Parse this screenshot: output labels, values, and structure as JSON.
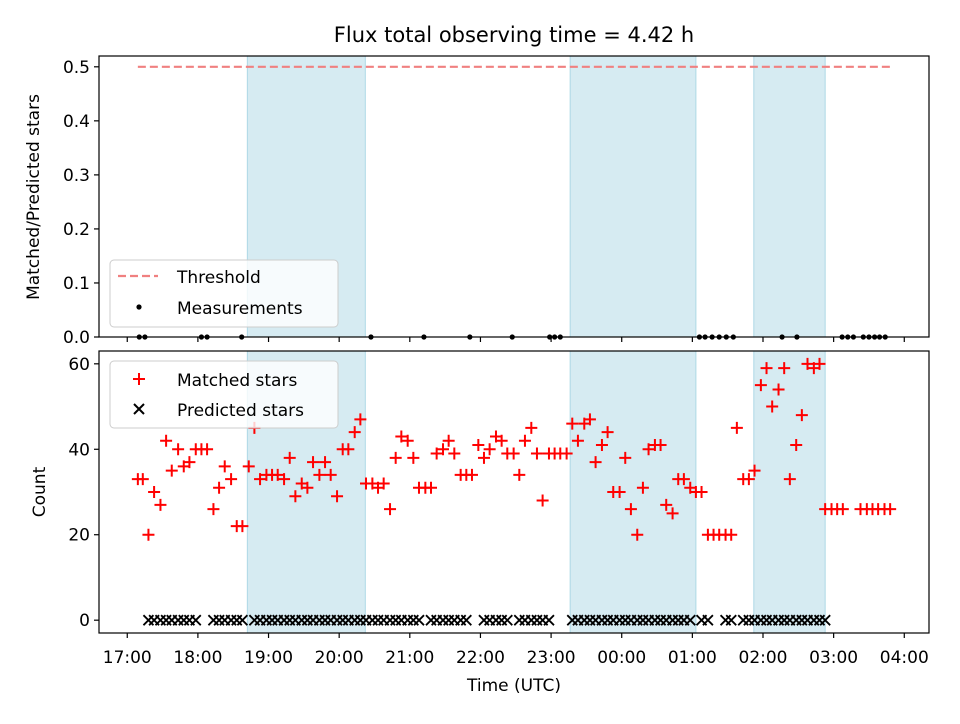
{
  "colors": {
    "threshold": "#f08080",
    "shade": "#add8e6",
    "matched": "#ff0000",
    "predicted": "#000000",
    "measurement": "#000000"
  },
  "chart_data": [
    {
      "type": "scatter",
      "title": "Flux total observing time = 4.42 h",
      "xlabel": "",
      "ylabel": "Matched/Predicted stars",
      "xlim": [
        16.6,
        28.35
      ],
      "ylim": [
        0,
        0.52
      ],
      "yticks": [
        0.0,
        0.1,
        0.2,
        0.3,
        0.4,
        0.5
      ],
      "ytick_labels": [
        "0.0",
        "0.1",
        "0.2",
        "0.3",
        "0.4",
        "0.5"
      ],
      "xticks": [
        17,
        18,
        19,
        20,
        21,
        22,
        23,
        24,
        25,
        26,
        27,
        28
      ],
      "shaded_intervals": [
        [
          18.7,
          20.37
        ],
        [
          23.27,
          25.05
        ],
        [
          25.87,
          26.88
        ]
      ],
      "threshold": {
        "name": "Threshold",
        "value": 0.5,
        "x_range": [
          17.15,
          27.82
        ]
      },
      "measurements": {
        "name": "Measurements",
        "x": [
          17.17,
          17.25,
          18.05,
          18.13,
          18.62,
          20.45,
          21.2,
          21.85,
          22.45,
          22.98,
          23.05,
          23.13,
          25.1,
          25.18,
          25.28,
          25.38,
          25.48,
          25.58,
          26.27,
          26.48,
          27.12,
          27.2,
          27.28,
          27.42,
          27.5,
          27.58,
          27.65,
          27.73
        ],
        "y": [
          0,
          0,
          0,
          0,
          0,
          0,
          0,
          0,
          0,
          0,
          0,
          0,
          0,
          0,
          0,
          0,
          0,
          0,
          0,
          0,
          0,
          0,
          0,
          0,
          0,
          0,
          0,
          0
        ]
      },
      "legend": {
        "location": "lower-left",
        "entries": [
          "Threshold",
          "Measurements"
        ]
      }
    },
    {
      "type": "scatter",
      "title": "",
      "xlabel": "Time (UTC)",
      "ylabel": "Count",
      "xlim": [
        16.6,
        28.35
      ],
      "ylim": [
        -3,
        63
      ],
      "yticks": [
        0,
        20,
        40,
        60
      ],
      "ytick_labels": [
        "0",
        "20",
        "40",
        "60"
      ],
      "xticks": [
        17,
        18,
        19,
        20,
        21,
        22,
        23,
        24,
        25,
        26,
        27,
        28
      ],
      "xtick_labels": [
        "17:00",
        "18:00",
        "19:00",
        "20:00",
        "21:00",
        "22:00",
        "23:00",
        "00:00",
        "01:00",
        "02:00",
        "03:00",
        "04:00"
      ],
      "shaded_intervals": [
        [
          18.7,
          20.37
        ],
        [
          23.27,
          25.05
        ],
        [
          25.87,
          26.88
        ]
      ],
      "series": [
        {
          "name": "Matched stars",
          "marker": "+",
          "x": [
            17.15,
            17.22,
            17.3,
            17.38,
            17.47,
            17.55,
            17.63,
            17.72,
            17.8,
            17.88,
            17.97,
            18.05,
            18.13,
            18.22,
            18.3,
            18.38,
            18.47,
            18.55,
            18.63,
            18.72,
            18.8,
            18.88,
            18.97,
            19.05,
            19.13,
            19.22,
            19.3,
            19.38,
            19.47,
            19.55,
            19.63,
            19.72,
            19.8,
            19.88,
            19.97,
            20.05,
            20.13,
            20.22,
            20.3,
            20.38,
            20.47,
            20.55,
            20.63,
            20.72,
            20.8,
            20.88,
            20.97,
            21.05,
            21.13,
            21.22,
            21.3,
            21.38,
            21.47,
            21.55,
            21.63,
            21.72,
            21.8,
            21.88,
            21.97,
            22.05,
            22.13,
            22.22,
            22.3,
            22.38,
            22.47,
            22.55,
            22.63,
            22.72,
            22.8,
            22.88,
            22.97,
            23.05,
            23.13,
            23.22,
            23.3,
            23.38,
            23.47,
            23.55,
            23.63,
            23.72,
            23.8,
            23.88,
            23.97,
            24.05,
            24.13,
            24.22,
            24.3,
            24.38,
            24.47,
            24.55,
            24.63,
            24.72,
            24.8,
            24.88,
            24.97,
            25.05,
            25.13,
            25.22,
            25.3,
            25.38,
            25.47,
            25.55,
            25.63,
            25.72,
            25.8,
            25.88,
            25.97,
            26.05,
            26.13,
            26.22,
            26.3,
            26.38,
            26.47,
            26.55,
            26.63,
            26.72,
            26.8,
            26.88,
            26.97,
            27.05,
            27.13,
            27.38,
            27.47,
            27.55,
            27.63,
            27.72,
            27.8
          ],
          "y": [
            33,
            33,
            20,
            30,
            27,
            42,
            35,
            40,
            36,
            37,
            40,
            40,
            40,
            26,
            31,
            36,
            33,
            22,
            22,
            36,
            45,
            33,
            34,
            34,
            34,
            33,
            38,
            29,
            32,
            31,
            37,
            34,
            37,
            34,
            29,
            40,
            40,
            44,
            47,
            32,
            32,
            31,
            32,
            26,
            38,
            43,
            42,
            38,
            31,
            31,
            31,
            39,
            40,
            42,
            39,
            34,
            34,
            34,
            41,
            38,
            40,
            43,
            42,
            39,
            39,
            34,
            42,
            45,
            39,
            28,
            39,
            39,
            39,
            39,
            46,
            42,
            46,
            47,
            37,
            41,
            44,
            30,
            30,
            38,
            26,
            20,
            31,
            40,
            41,
            41,
            27,
            25,
            33,
            33,
            31,
            30,
            30,
            20,
            20,
            20,
            20,
            20,
            45,
            33,
            33,
            35,
            55,
            59,
            50,
            54,
            59,
            33,
            41,
            48,
            60,
            59,
            60,
            26,
            26,
            26,
            26,
            26,
            26,
            26,
            26,
            26,
            26
          ]
        },
        {
          "name": "Predicted stars",
          "marker": "x",
          "x": [
            17.3,
            17.38,
            17.47,
            17.55,
            17.63,
            17.72,
            17.8,
            17.88,
            17.97,
            18.22,
            18.3,
            18.38,
            18.47,
            18.55,
            18.63,
            18.8,
            18.88,
            18.97,
            19.05,
            19.13,
            19.22,
            19.3,
            19.38,
            19.47,
            19.55,
            19.63,
            19.72,
            19.8,
            19.88,
            19.97,
            20.05,
            20.13,
            20.22,
            20.3,
            20.38,
            20.47,
            20.55,
            20.63,
            20.72,
            20.8,
            20.88,
            20.97,
            21.05,
            21.13,
            21.3,
            21.38,
            21.47,
            21.55,
            21.63,
            21.72,
            21.8,
            22.05,
            22.13,
            22.22,
            22.3,
            22.38,
            22.55,
            22.63,
            22.72,
            22.8,
            22.88,
            22.97,
            23.3,
            23.38,
            23.47,
            23.55,
            23.63,
            23.72,
            23.8,
            23.88,
            23.97,
            24.05,
            24.13,
            24.22,
            24.3,
            24.38,
            24.47,
            24.55,
            24.63,
            24.72,
            24.8,
            24.88,
            24.97,
            25.13,
            25.22,
            25.47,
            25.55,
            25.72,
            25.8,
            25.88,
            25.97,
            26.05,
            26.13,
            26.22,
            26.3,
            26.38,
            26.47,
            26.55,
            26.63,
            26.72,
            26.8,
            26.88
          ],
          "y": [
            0,
            0,
            0,
            0,
            0,
            0,
            0,
            0,
            0,
            0,
            0,
            0,
            0,
            0,
            0,
            0,
            0,
            0,
            0,
            0,
            0,
            0,
            0,
            0,
            0,
            0,
            0,
            0,
            0,
            0,
            0,
            0,
            0,
            0,
            0,
            0,
            0,
            0,
            0,
            0,
            0,
            0,
            0,
            0,
            0,
            0,
            0,
            0,
            0,
            0,
            0,
            0,
            0,
            0,
            0,
            0,
            0,
            0,
            0,
            0,
            0,
            0,
            0,
            0,
            0,
            0,
            0,
            0,
            0,
            0,
            0,
            0,
            0,
            0,
            0,
            0,
            0,
            0,
            0,
            0,
            0,
            0,
            0,
            0,
            0,
            0,
            0,
            0,
            0,
            0,
            0,
            0,
            0,
            0,
            0,
            0,
            0,
            0,
            0,
            0,
            0,
            0
          ]
        }
      ],
      "legend": {
        "location": "top-left",
        "entries": [
          "Matched stars",
          "Predicted stars"
        ]
      }
    }
  ]
}
